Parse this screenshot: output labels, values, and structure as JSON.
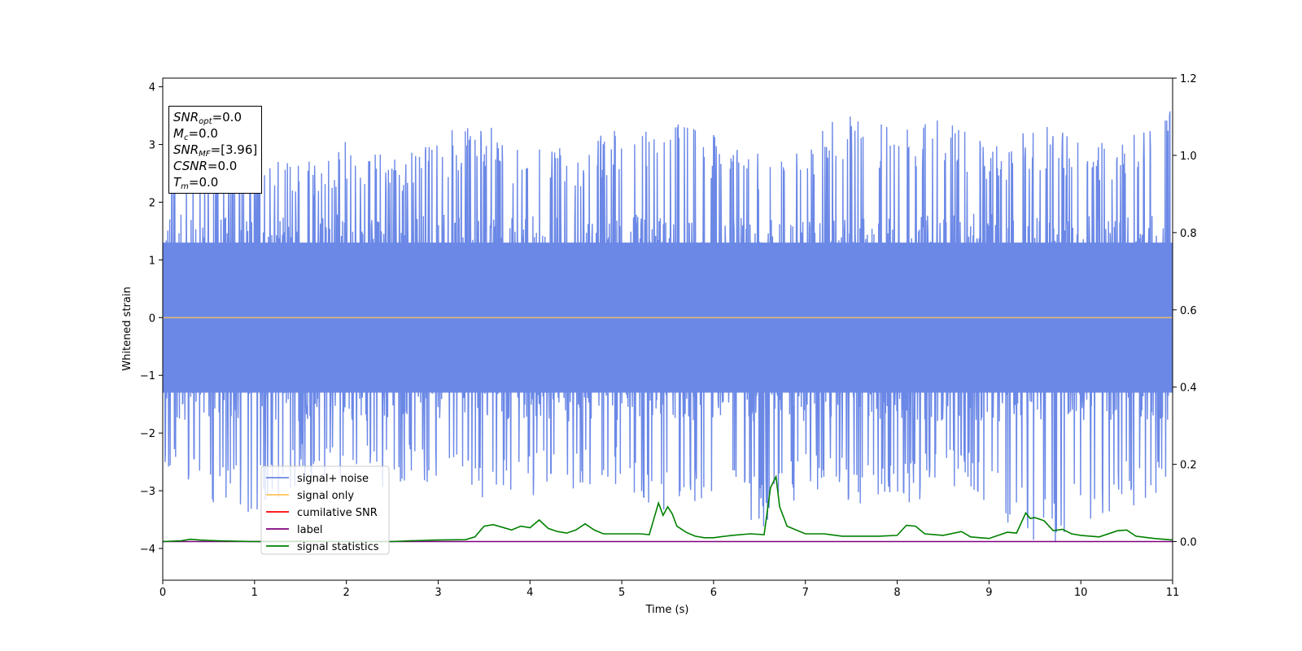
{
  "info_box": {
    "lines": [
      {
        "base": "SNR",
        "sub": "opt",
        "value": "=0.0"
      },
      {
        "base": "M",
        "sub": "c",
        "value": "=0.0"
      },
      {
        "base": "SNR",
        "sub": "MF",
        "value": "=[3.96]"
      },
      {
        "base": "CSNR",
        "sub": "",
        "value": "=0.0"
      },
      {
        "base": "T",
        "sub": "m",
        "value": "=0.0"
      }
    ]
  },
  "chart_data": {
    "type": "line",
    "xlabel": "Time (s)",
    "ylabel": "Whitened strain",
    "xlim": [
      0,
      11
    ],
    "ylim": [
      -4.55,
      4.15
    ],
    "y2lim": [
      -0.1,
      1.2
    ],
    "x_ticks": [
      "0",
      "1",
      "2",
      "3",
      "4",
      "5",
      "6",
      "7",
      "8",
      "9",
      "10",
      "11"
    ],
    "y_ticks": [
      "4",
      "3",
      "2",
      "1",
      "0",
      "−1",
      "−2",
      "−3",
      "−4"
    ],
    "y2_ticks": [
      "1.2",
      "1.0",
      "0.8",
      "0.6",
      "0.4",
      "0.2",
      "0.0"
    ],
    "grid": false,
    "legend_position": "lower-left",
    "colors": {
      "signal_noise": "#6b88e6",
      "signal_only": "#ffc55a",
      "cumulative_snr": "#ff0000",
      "label": "#800080",
      "signal_statistics": "#008000"
    },
    "series": [
      {
        "name": "signal+ noise",
        "axis": "left",
        "envelope": {
          "x": [
            0,
            0.5,
            1,
            1.5,
            2,
            2.5,
            3,
            3.5,
            4,
            4.5,
            5,
            5.5,
            6,
            6.5,
            7,
            7.5,
            8,
            8.5,
            9,
            9.5,
            10,
            10.5,
            11
          ],
          "upper": [
            3.0,
            2.9,
            2.8,
            2.7,
            3.1,
            2.8,
            3.2,
            3.4,
            2.9,
            3.0,
            3.3,
            3.4,
            3.2,
            2.9,
            3.1,
            3.6,
            3.3,
            3.5,
            3.0,
            3.4,
            3.2,
            3.1,
            3.7
          ],
          "lower": [
            -2.6,
            -3.4,
            -3.4,
            -2.9,
            -2.8,
            -3.0,
            -2.8,
            -3.3,
            -3.1,
            -3.0,
            -2.9,
            -3.5,
            -3.0,
            -3.7,
            -3.0,
            -3.2,
            -3.3,
            -3.0,
            -3.2,
            -4.15,
            -3.7,
            -3.3,
            -3.3
          ]
        }
      },
      {
        "name": "signal only",
        "axis": "left",
        "x": [
          0,
          11
        ],
        "y": [
          0,
          0
        ]
      },
      {
        "name": "cumilative SNR",
        "axis": "right",
        "x": [],
        "y": []
      },
      {
        "name": "label",
        "axis": "right",
        "x": [
          0,
          11
        ],
        "y": [
          0,
          0
        ]
      },
      {
        "name": "signal statistics",
        "axis": "right",
        "x": [
          0,
          0.2,
          0.3,
          0.4,
          0.6,
          0.8,
          1.0,
          1.5,
          2.0,
          2.5,
          2.7,
          3.0,
          3.3,
          3.4,
          3.5,
          3.6,
          3.8,
          3.9,
          4.0,
          4.1,
          4.2,
          4.3,
          4.4,
          4.5,
          4.6,
          4.7,
          4.8,
          5.0,
          5.2,
          5.3,
          5.4,
          5.45,
          5.5,
          5.55,
          5.6,
          5.7,
          5.8,
          5.9,
          6.0,
          6.2,
          6.4,
          6.55,
          6.62,
          6.68,
          6.72,
          6.8,
          7.0,
          7.2,
          7.4,
          7.6,
          7.8,
          8.0,
          8.1,
          8.2,
          8.3,
          8.5,
          8.7,
          8.8,
          9.0,
          9.2,
          9.3,
          9.4,
          9.45,
          9.5,
          9.6,
          9.7,
          9.8,
          9.9,
          10.0,
          10.2,
          10.4,
          10.5,
          10.6,
          10.8,
          11.0
        ],
        "y": [
          0.0,
          0.002,
          0.006,
          0.004,
          0.002,
          0.001,
          0.0,
          0.001,
          0.0,
          0.0,
          0.002,
          0.004,
          0.005,
          0.012,
          0.04,
          0.044,
          0.03,
          0.04,
          0.036,
          0.056,
          0.034,
          0.026,
          0.022,
          0.03,
          0.046,
          0.03,
          0.02,
          0.02,
          0.02,
          0.018,
          0.1,
          0.068,
          0.09,
          0.072,
          0.04,
          0.024,
          0.014,
          0.01,
          0.01,
          0.016,
          0.02,
          0.018,
          0.14,
          0.168,
          0.09,
          0.04,
          0.02,
          0.02,
          0.014,
          0.014,
          0.014,
          0.016,
          0.042,
          0.04,
          0.02,
          0.016,
          0.026,
          0.012,
          0.008,
          0.024,
          0.022,
          0.074,
          0.06,
          0.062,
          0.054,
          0.028,
          0.032,
          0.02,
          0.016,
          0.012,
          0.028,
          0.03,
          0.014,
          0.008,
          0.004
        ]
      }
    ]
  }
}
